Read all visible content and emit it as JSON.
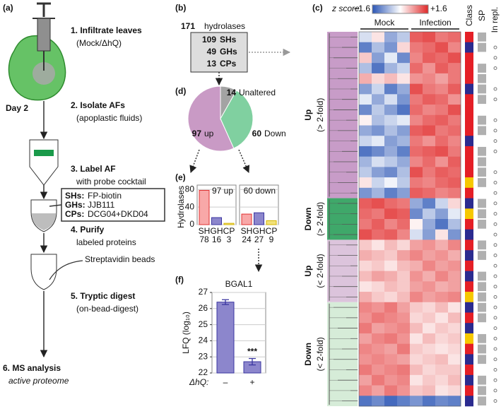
{
  "diagram": {
    "panel": "(a)",
    "steps": [
      {
        "title": "1. Infiltrate leaves",
        "detail": "(Mock/ΔhQ)"
      },
      {
        "title": "2. Isolate AFs",
        "detail": "(apoplastic fluids)"
      },
      {
        "title": "3. Label AF",
        "detail": "with probe cocktail"
      },
      {
        "title": "4. Purify",
        "detail": "labeled proteins"
      },
      {
        "title": "5. Tryptic digest",
        "detail": "(on-bead-digest)"
      },
      {
        "title": "6. MS analysis",
        "detail": "active proteome"
      }
    ],
    "day": "Day 2",
    "probes": [
      {
        "class": "SHs:",
        "probe": "FP-biotin",
        "color": "#e02020"
      },
      {
        "class": "GHs:",
        "probe": "JJB111",
        "color": "#2e2a9c"
      },
      {
        "class": "CPs:",
        "probe": "DCG04+DKD04",
        "color": "#e0bc00"
      }
    ],
    "beads": "Streptavidin beads"
  },
  "summary": {
    "panel": "(b)",
    "total": 171,
    "total_label": "hydrolases",
    "classes": [
      {
        "count": 109,
        "name": "SHs",
        "color": "#e02020"
      },
      {
        "count": 49,
        "name": "GHs",
        "color": "#2e2a9c"
      },
      {
        "count": 13,
        "name": "CPs",
        "color": "#e0bc00"
      }
    ]
  },
  "chart_data": [
    {
      "type": "pie",
      "panel": "(d)",
      "categories": [
        "up",
        "Unaltered",
        "Down"
      ],
      "values": [
        97,
        14,
        60
      ],
      "colors": [
        "#c99ac5",
        "#a3a3a3",
        "#80d0a0"
      ]
    },
    {
      "type": "facet-bar",
      "panel": "(e)",
      "ylabel": "Hydrolases",
      "ylim": [
        0,
        90
      ],
      "yticks": [
        0,
        40,
        80
      ],
      "grid": true,
      "categories": [
        "SH",
        "GH",
        "CP"
      ],
      "colors": [
        "#e03030",
        "#3a35a0",
        "#d4b400"
      ],
      "fill_colors": [
        "#f8a8a8",
        "#8c86cc",
        "#f2e27a"
      ],
      "facets": [
        {
          "title": "97 up",
          "values": [
            78,
            16,
            3
          ]
        },
        {
          "title": "60 down",
          "values": [
            24,
            27,
            9
          ]
        }
      ]
    },
    {
      "type": "bar",
      "panel": "(f)",
      "title": "BGAL1",
      "ylabel": "LFQ (log₁₀)",
      "xlabel": "ΔhQ:",
      "categories": [
        "–",
        "+"
      ],
      "values": [
        26.4,
        22.7
      ],
      "errors": [
        0.15,
        0.2
      ],
      "ylim": [
        22,
        27
      ],
      "yticks": [
        22,
        23,
        24,
        25,
        26,
        27
      ],
      "grid": true,
      "color": "#8c86cc",
      "edge_color": "#3a35a0",
      "annotations": [
        {
          "text": "***",
          "category": 1
        }
      ]
    },
    {
      "type": "heatmap",
      "panel": "(c)",
      "colorbar": {
        "label": "z score:",
        "ticks": [
          {
            "value": -1.6,
            "label": "−1.6"
          },
          {
            "value": 1.6,
            "label": "+1.6"
          }
        ],
        "colors": [
          "#2a55b5",
          "#ffffff",
          "#e02828"
        ]
      },
      "column_groups": [
        "Mock",
        "Infection"
      ],
      "side_labels": [
        "Class",
        "SP",
        "In repl."
      ],
      "class_colors": {
        "SH": "#e41f26",
        "GH": "#2b2b8f",
        "CP": "#f6c800"
      },
      "groups": [
        {
          "name": "Up",
          "sub": "(> 2-fold)",
          "color": "#c89cc8",
          "rows": [
            {
              "z": [
                -0.3,
                0.2,
                -0.8,
                -0.5,
                1.2,
                1.3,
                1.0,
                1.1
              ],
              "class": "SH",
              "sp": true,
              "repl": false
            },
            {
              "z": [
                -1.2,
                -0.6,
                -1.0,
                0.3,
                1.0,
                1.1,
                1.3,
                0.9
              ],
              "class": "GH",
              "sp": true,
              "repl": true
            },
            {
              "z": [
                0.4,
                -0.9,
                -0.2,
                -1.1,
                0.9,
                1.2,
                1.1,
                1.3
              ],
              "class": "SH",
              "sp": false,
              "repl": true
            },
            {
              "z": [
                -0.6,
                -1.3,
                -0.7,
                -0.4,
                1.1,
                0.8,
                1.2,
                1.0
              ],
              "class": "SH",
              "sp": true,
              "repl": true
            },
            {
              "z": [
                0.6,
                0.3,
                0.5,
                0.2,
                0.8,
                0.9,
                0.7,
                1.0
              ],
              "class": "SH",
              "sp": true,
              "repl": false
            },
            {
              "z": [
                -0.9,
                -0.4,
                -1.2,
                -0.8,
                1.3,
                1.0,
                0.9,
                1.2
              ],
              "class": "GH",
              "sp": true,
              "repl": true
            },
            {
              "z": [
                -0.2,
                -0.8,
                -0.3,
                -1.0,
                1.0,
                1.2,
                1.1,
                0.8
              ],
              "class": "SH",
              "sp": true,
              "repl": true
            },
            {
              "z": [
                -1.1,
                -0.5,
                -0.9,
                -1.3,
                1.1,
                0.9,
                1.0,
                1.3
              ],
              "class": "SH",
              "sp": false,
              "repl": false
            },
            {
              "z": [
                0.1,
                -0.6,
                -0.4,
                -0.2,
                0.9,
                1.1,
                1.2,
                1.0
              ],
              "class": "SH",
              "sp": true,
              "repl": true
            },
            {
              "z": [
                -0.8,
                -1.0,
                -0.6,
                -0.9,
                1.2,
                1.3,
                1.0,
                1.1
              ],
              "class": "SH",
              "sp": true,
              "repl": true
            },
            {
              "z": [
                -0.4,
                -0.2,
                -0.9,
                -0.7,
                1.0,
                0.8,
                1.1,
                0.9
              ],
              "class": "GH",
              "sp": false,
              "repl": true
            },
            {
              "z": [
                -1.3,
                -1.1,
                -0.8,
                -1.2,
                1.1,
                1.2,
                1.3,
                1.0
              ],
              "class": "SH",
              "sp": true,
              "repl": true
            },
            {
              "z": [
                -0.7,
                -0.3,
                -0.5,
                -0.8,
                0.9,
                1.1,
                0.8,
                1.2
              ],
              "class": "SH",
              "sp": true,
              "repl": false
            },
            {
              "z": [
                -0.5,
                -0.9,
                -1.1,
                -0.6,
                1.3,
                1.0,
                1.2,
                1.1
              ],
              "class": "SH",
              "sp": true,
              "repl": true
            },
            {
              "z": [
                0.2,
                -0.4,
                -0.1,
                -0.5,
                1.0,
                0.9,
                1.1,
                1.2
              ],
              "class": "CP",
              "sp": true,
              "repl": true
            },
            {
              "z": [
                -1.0,
                -0.7,
                -1.2,
                -0.9,
                1.2,
                1.1,
                0.9,
                1.0
              ],
              "class": "SH",
              "sp": false,
              "repl": true
            }
          ]
        },
        {
          "name": "Down",
          "sub": "(> 2-fold)",
          "color": "#3fa86a",
          "rows": [
            {
              "z": [
                1.2,
                1.3,
                1.1,
                1.0,
                -0.8,
                -1.2,
                -0.4,
                0.3
              ],
              "class": "GH",
              "sp": true,
              "repl": true
            },
            {
              "z": [
                1.1,
                1.0,
                1.3,
                1.2,
                -1.1,
                -0.5,
                -0.9,
                -0.2
              ],
              "class": "CP",
              "sp": true,
              "repl": true
            },
            {
              "z": [
                1.0,
                1.2,
                0.9,
                1.1,
                0.1,
                -0.8,
                -1.3,
                -0.6
              ],
              "class": "SH",
              "sp": true,
              "repl": true
            },
            {
              "z": [
                1.3,
                1.1,
                1.2,
                0.9,
                -0.3,
                -0.9,
                0.2,
                -1.0
              ],
              "class": "GH",
              "sp": false,
              "repl": true
            }
          ]
        },
        {
          "name": "Up",
          "sub": "(< 2-fold)",
          "color": "#dcc4dc",
          "rows": [
            {
              "z": [
                0.4,
                0.2,
                0.5,
                0.3,
                0.7,
                0.8,
                0.6,
                0.9
              ],
              "class": "SH",
              "sp": true,
              "repl": true
            },
            {
              "z": [
                0.6,
                0.5,
                0.4,
                0.7,
                0.9,
                0.7,
                0.8,
                0.6
              ],
              "class": "GH",
              "sp": true,
              "repl": true
            },
            {
              "z": [
                0.3,
                0.4,
                0.2,
                0.5,
                0.6,
                0.9,
                0.7,
                0.8
              ],
              "class": "SH",
              "sp": false,
              "repl": true
            },
            {
              "z": [
                0.5,
                0.7,
                0.6,
                0.4,
                0.8,
                0.6,
                0.9,
                0.7
              ],
              "class": "GH",
              "sp": true,
              "repl": true
            },
            {
              "z": [
                0.2,
                0.3,
                0.5,
                0.4,
                0.7,
                0.8,
                0.6,
                0.7
              ],
              "class": "SH",
              "sp": true,
              "repl": true
            },
            {
              "z": [
                0.6,
                0.4,
                0.3,
                0.5,
                0.9,
                0.7,
                0.8,
                0.9
              ],
              "class": "CP",
              "sp": true,
              "repl": true
            }
          ]
        },
        {
          "name": "Down",
          "sub": "(< 2-fold)",
          "color": "#d6ecd8",
          "rows": [
            {
              "z": [
                0.9,
                0.8,
                1.0,
                0.7,
                0.4,
                0.3,
                0.5,
                0.2
              ],
              "class": "GH",
              "sp": true,
              "repl": true
            },
            {
              "z": [
                0.8,
                1.0,
                0.9,
                0.8,
                0.3,
                0.4,
                0.2,
                0.5
              ],
              "class": "SH",
              "sp": true,
              "repl": true
            },
            {
              "z": [
                1.0,
                0.7,
                0.8,
                0.9,
                0.5,
                0.2,
                0.4,
                0.3
              ],
              "class": "GH",
              "sp": false,
              "repl": true
            },
            {
              "z": [
                0.7,
                0.9,
                1.0,
                0.8,
                0.2,
                0.5,
                0.3,
                0.4
              ],
              "class": "CP",
              "sp": true,
              "repl": true
            },
            {
              "z": [
                0.9,
                0.8,
                0.7,
                1.0,
                0.4,
                0.3,
                0.2,
                0.3
              ],
              "class": "SH",
              "sp": true,
              "repl": true
            },
            {
              "z": [
                0.8,
                0.9,
                0.8,
                0.7,
                0.3,
                0.4,
                0.5,
                0.2
              ],
              "class": "GH",
              "sp": true,
              "repl": true
            },
            {
              "z": [
                1.0,
                0.8,
                0.9,
                1.0,
                0.5,
                0.3,
                0.4,
                0.4
              ],
              "class": "SH",
              "sp": false,
              "repl": true
            },
            {
              "z": [
                0.7,
                1.0,
                0.8,
                0.9,
                0.2,
                0.4,
                0.3,
                0.5
              ],
              "class": "GH",
              "sp": true,
              "repl": true
            },
            {
              "z": [
                0.9,
                0.7,
                1.0,
                0.8,
                0.4,
                0.5,
                0.2,
                0.3
              ],
              "class": "SH",
              "sp": true,
              "repl": true
            },
            {
              "z": [
                -1.3,
                -1.1,
                -1.4,
                -1.2,
                -1.0,
                -1.3,
                -1.1,
                -1.2
              ],
              "class": "GH",
              "sp": true,
              "repl": true
            }
          ]
        }
      ]
    }
  ]
}
